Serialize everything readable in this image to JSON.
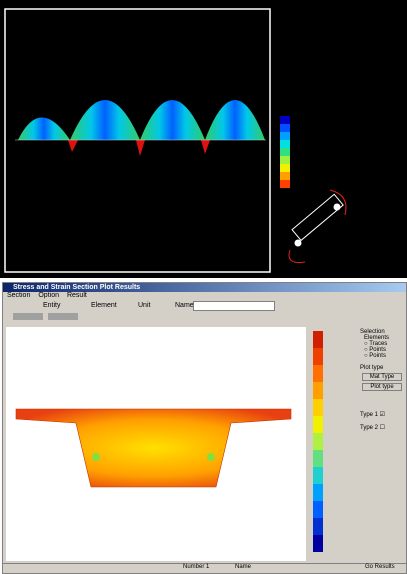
{
  "window": {
    "title": "Stress and Strain Section Plot Results"
  },
  "menu": [
    "Section",
    "Option",
    "Result"
  ],
  "toolbar": [
    "Entity",
    "Element",
    "Unit",
    "Name"
  ],
  "panel": {
    "selection": "Selection",
    "elements": "Elements",
    "options": [
      "Traces",
      "Points",
      "Points"
    ],
    "plot_type": "Plot type",
    "buttons": [
      "Mat Type",
      "Plot type"
    ],
    "types": [
      "Type 1",
      "Type 2"
    ]
  },
  "status": [
    "Number 1",
    "Name",
    "Go Results"
  ]
}
